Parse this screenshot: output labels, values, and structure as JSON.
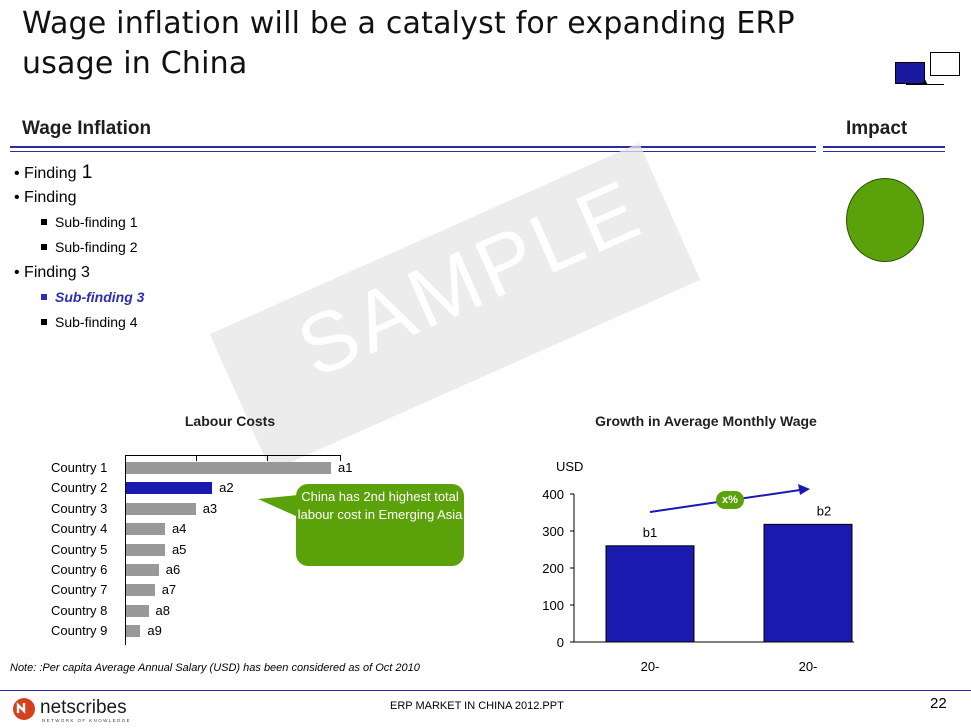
{
  "title": "Wage inflation will be a catalyst for expanding ERP usage in China",
  "section": {
    "left_heading": "Wage Inflation",
    "right_heading": "Impact"
  },
  "bullets": [
    {
      "level": 1,
      "prefix": "• ",
      "label": "Finding",
      "suffix": " 1"
    },
    {
      "level": 1,
      "prefix": "• ",
      "label": "Finding",
      "suffix": ""
    },
    {
      "level": 2,
      "label": "Sub-finding 1"
    },
    {
      "level": 2,
      "label": "Sub-finding 2"
    },
    {
      "level": 1,
      "prefix": "• ",
      "label": "Finding 3",
      "suffix": ""
    },
    {
      "level": 2,
      "label": "Sub-finding 3",
      "highlight": true
    },
    {
      "level": 2,
      "label": "Sub-finding 4"
    }
  ],
  "watermark": "SAMPLE",
  "impact_color": "#5aa10a",
  "chart_data": [
    {
      "type": "bar",
      "title": "Labour Costs",
      "orientation": "horizontal",
      "categories": [
        "Country 1",
        "Country 2",
        "Country 3",
        "Country 4",
        "Country 5",
        "Country 6",
        "Country 7",
        "Country 8",
        "Country 9"
      ],
      "data_labels": [
        "a1",
        "a2",
        "a3",
        "a4",
        "a5",
        "a6",
        "a7",
        "a8",
        "a9"
      ],
      "values": [
        100,
        42,
        34,
        19,
        19,
        16,
        14,
        11,
        7
      ],
      "highlight_index": 1,
      "colors": {
        "bar": "#999999",
        "highlight": "#1a1ab0"
      },
      "callout": "China has 2nd highest total labour cost in Emerging Asia"
    },
    {
      "type": "bar",
      "title": "Growth in Average Monthly Wage",
      "ylabel": "USD",
      "ylim": [
        0,
        400
      ],
      "yticks": [
        "0",
        "100",
        "200",
        "300",
        "400"
      ],
      "categories": [
        "20-",
        "20-"
      ],
      "data_labels": [
        "b1",
        "b2"
      ],
      "values": [
        260,
        318
      ],
      "growth_label": "x%",
      "colors": {
        "bar": "#1a1ab0",
        "badge": "#5aa10a"
      }
    }
  ],
  "note": "Note: :Per capita Average Annual Salary (USD) has been considered as of Oct 2010",
  "footer": {
    "center": "ERP MARKET IN CHINA 2012.PPT",
    "page": "22",
    "logo_text": "netscribes",
    "logo_tagline": "NETWORK OF KNOWLEDGE"
  },
  "colors": {
    "accent_blue": "#2c2ca0",
    "bar_blue": "#1a1ab0",
    "green": "#5aa10a"
  }
}
